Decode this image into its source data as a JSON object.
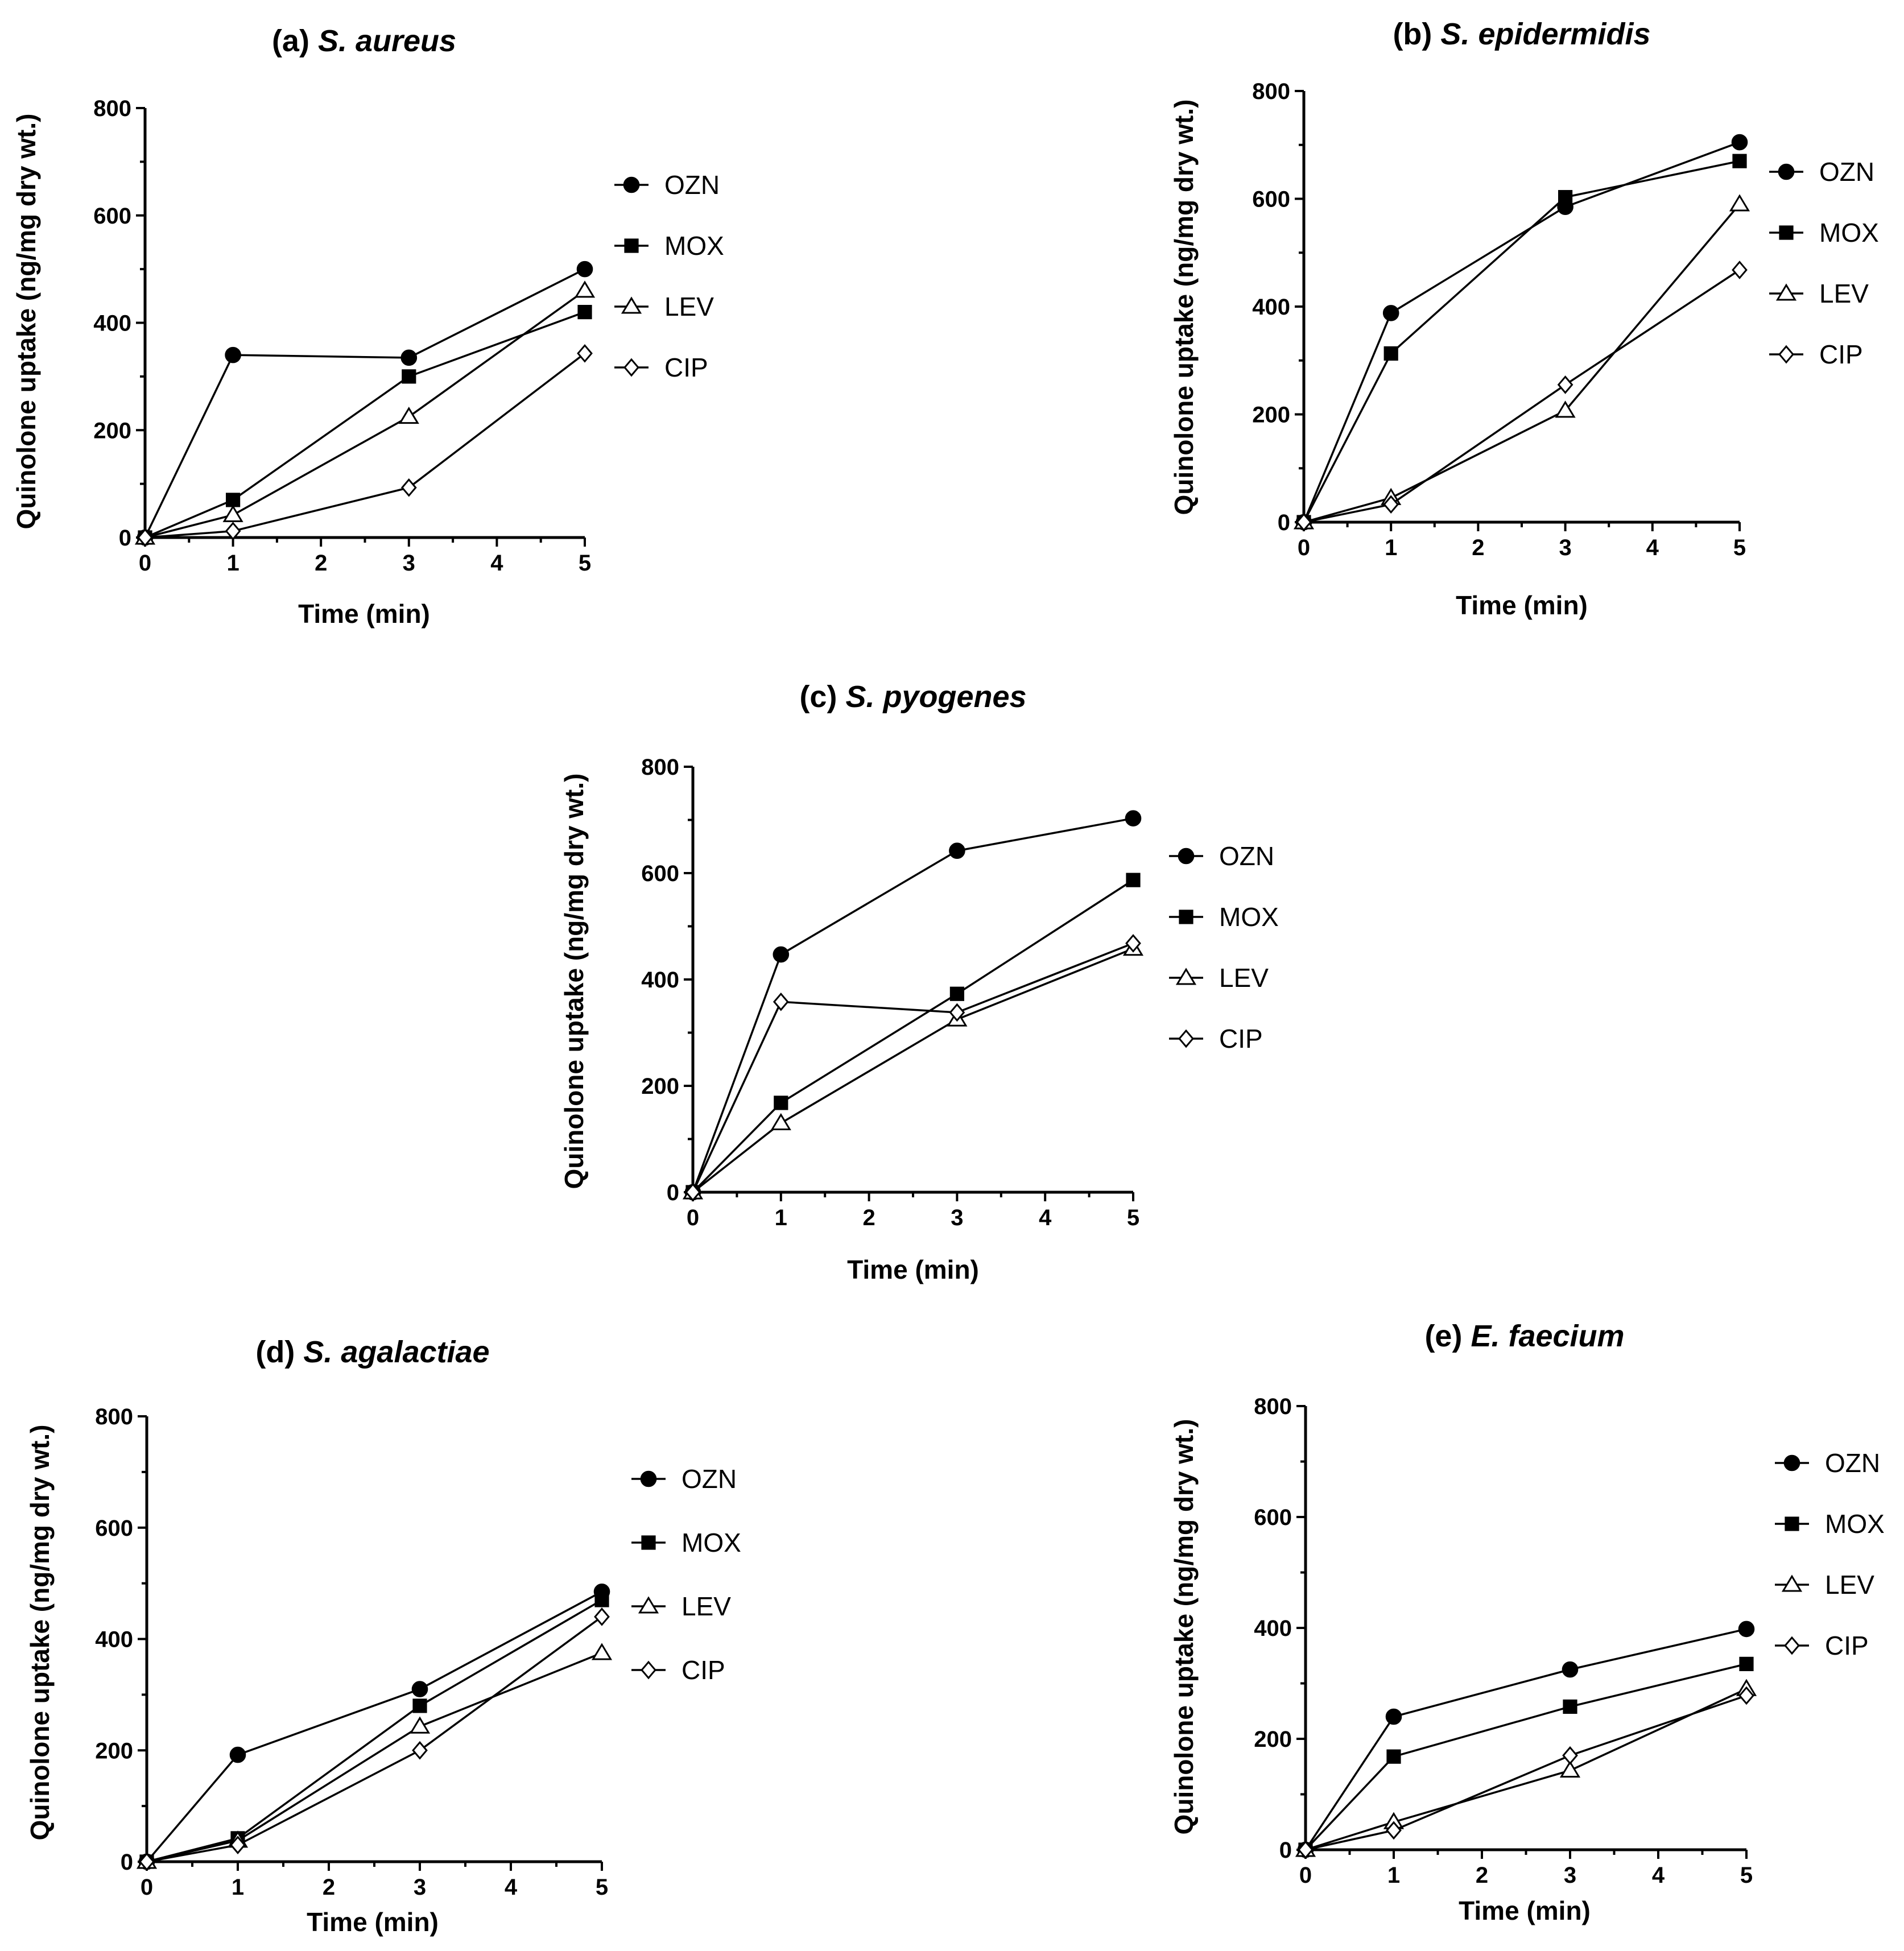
{
  "chart_data": [
    {
      "type": "line",
      "title_prefix": "(a)",
      "title_species": "S. aureus",
      "xlabel": "Time (min)",
      "ylabel": "Quinolone uptake (ng/mg dry wt.)",
      "xlim": [
        0,
        5
      ],
      "ylim": [
        0,
        800
      ],
      "xticks": [
        0,
        1,
        2,
        3,
        4,
        5
      ],
      "yticks": [
        0,
        200,
        400,
        600,
        800
      ],
      "x": [
        0,
        1,
        3,
        5
      ],
      "series": [
        {
          "name": "OZN",
          "marker": "circle",
          "values": [
            0,
            340,
            335,
            500
          ]
        },
        {
          "name": "MOX",
          "marker": "square",
          "values": [
            0,
            70,
            300,
            420
          ]
        },
        {
          "name": "LEV",
          "marker": "triangle",
          "values": [
            0,
            42,
            225,
            460
          ]
        },
        {
          "name": "CIP",
          "marker": "diamond",
          "values": [
            0,
            12,
            93,
            343
          ]
        }
      ]
    },
    {
      "type": "line",
      "title_prefix": "(b)",
      "title_species": "S. epidermidis",
      "xlabel": "Time (min)",
      "ylabel": "Quinolone uptake (ng/mg dry wt.)",
      "xlim": [
        0,
        5
      ],
      "ylim": [
        0,
        800
      ],
      "xticks": [
        0,
        1,
        2,
        3,
        4,
        5
      ],
      "yticks": [
        0,
        200,
        400,
        600,
        800
      ],
      "x": [
        0,
        1,
        3,
        5
      ],
      "series": [
        {
          "name": "OZN",
          "marker": "circle",
          "values": [
            0,
            388,
            585,
            705
          ]
        },
        {
          "name": "MOX",
          "marker": "square",
          "values": [
            0,
            313,
            603,
            670
          ]
        },
        {
          "name": "LEV",
          "marker": "triangle",
          "values": [
            0,
            45,
            207,
            590
          ]
        },
        {
          "name": "CIP",
          "marker": "diamond",
          "values": [
            0,
            33,
            255,
            468
          ]
        }
      ]
    },
    {
      "type": "line",
      "title_prefix": "(c)",
      "title_species": "S. pyogenes",
      "xlabel": "Time (min)",
      "ylabel": "Quinolone uptake (ng/mg dry wt.)",
      "xlim": [
        0,
        5
      ],
      "ylim": [
        0,
        800
      ],
      "xticks": [
        0,
        1,
        2,
        3,
        4,
        5
      ],
      "yticks": [
        0,
        200,
        400,
        600,
        800
      ],
      "x": [
        0,
        1,
        3,
        5
      ],
      "series": [
        {
          "name": "OZN",
          "marker": "circle",
          "values": [
            0,
            447,
            642,
            703
          ]
        },
        {
          "name": "MOX",
          "marker": "square",
          "values": [
            0,
            168,
            373,
            587
          ]
        },
        {
          "name": "LEV",
          "marker": "triangle",
          "values": [
            0,
            130,
            325,
            458
          ]
        },
        {
          "name": "CIP",
          "marker": "diamond",
          "values": [
            0,
            358,
            338,
            468
          ]
        }
      ]
    },
    {
      "type": "line",
      "title_prefix": "(d)",
      "title_species": "S. agalactiae",
      "xlabel": "Time (min)",
      "ylabel": "Quinolone uptake (ng/mg dry wt.)",
      "xlim": [
        0,
        5
      ],
      "ylim": [
        0,
        800
      ],
      "xticks": [
        0,
        1,
        2,
        3,
        4,
        5
      ],
      "yticks": [
        0,
        200,
        400,
        600,
        800
      ],
      "x": [
        0,
        1,
        3,
        5
      ],
      "series": [
        {
          "name": "OZN",
          "marker": "circle",
          "values": [
            0,
            192,
            310,
            485
          ]
        },
        {
          "name": "MOX",
          "marker": "square",
          "values": [
            0,
            42,
            280,
            470
          ]
        },
        {
          "name": "LEV",
          "marker": "triangle",
          "values": [
            0,
            38,
            243,
            375
          ]
        },
        {
          "name": "CIP",
          "marker": "diamond",
          "values": [
            0,
            30,
            200,
            440
          ]
        }
      ]
    },
    {
      "type": "line",
      "title_prefix": "(e)",
      "title_species": "E. faecium",
      "xlabel": "Time (min)",
      "ylabel": "Quinolone uptake (ng/mg dry wt.)",
      "xlim": [
        0,
        5
      ],
      "ylim": [
        0,
        800
      ],
      "xticks": [
        0,
        1,
        2,
        3,
        4,
        5
      ],
      "yticks": [
        0,
        200,
        400,
        600,
        800
      ],
      "x": [
        0,
        1,
        3,
        5
      ],
      "series": [
        {
          "name": "OZN",
          "marker": "circle",
          "values": [
            0,
            240,
            325,
            398
          ]
        },
        {
          "name": "MOX",
          "marker": "square",
          "values": [
            0,
            168,
            258,
            335
          ]
        },
        {
          "name": "LEV",
          "marker": "triangle",
          "values": [
            0,
            50,
            143,
            290
          ]
        },
        {
          "name": "CIP",
          "marker": "diamond",
          "values": [
            0,
            35,
            170,
            278
          ]
        }
      ]
    }
  ]
}
